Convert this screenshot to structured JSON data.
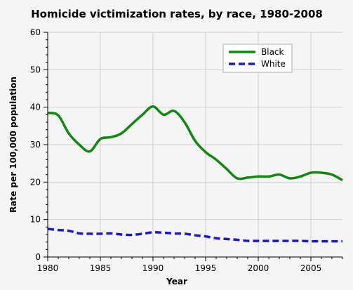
{
  "chart_data": {
    "type": "line",
    "title": "Homicide victimization rates, by race, 1980-2008",
    "xlabel": "Year",
    "ylabel": "Rate per 100,000 population",
    "xlim": [
      1980,
      2008
    ],
    "ylim": [
      0,
      60
    ],
    "x_ticks": [
      "1980",
      "1985",
      "1990",
      "1995",
      "2000",
      "2005"
    ],
    "y_ticks": [
      "0",
      "10",
      "20",
      "30",
      "40",
      "50",
      "60"
    ],
    "grid": true,
    "legend_position": "top-right",
    "x": [
      1980,
      1981,
      1982,
      1983,
      1984,
      1985,
      1986,
      1987,
      1988,
      1989,
      1990,
      1991,
      1992,
      1993,
      1994,
      1995,
      1996,
      1997,
      1998,
      1999,
      2000,
      2001,
      2002,
      2003,
      2004,
      2005,
      2006,
      2007,
      2008
    ],
    "series": [
      {
        "name": "Black",
        "color": "#118811",
        "style": "solid",
        "values": [
          38.5,
          37.8,
          33.0,
          30.0,
          28.2,
          31.5,
          32.0,
          33.0,
          35.5,
          38.0,
          40.2,
          38.0,
          39.0,
          36.0,
          31.0,
          28.0,
          26.0,
          23.5,
          21.0,
          21.2,
          21.5,
          21.5,
          22.0,
          21.0,
          21.5,
          22.5,
          22.5,
          22.0,
          20.5
        ]
      },
      {
        "name": "White",
        "color": "#1a1acc",
        "style": "dashed",
        "values": [
          7.5,
          7.2,
          7.0,
          6.3,
          6.2,
          6.2,
          6.3,
          6.0,
          5.9,
          6.2,
          6.6,
          6.5,
          6.3,
          6.2,
          5.8,
          5.5,
          5.0,
          4.8,
          4.6,
          4.3,
          4.3,
          4.3,
          4.3,
          4.3,
          4.3,
          4.2,
          4.2,
          4.2,
          4.2
        ]
      }
    ]
  }
}
